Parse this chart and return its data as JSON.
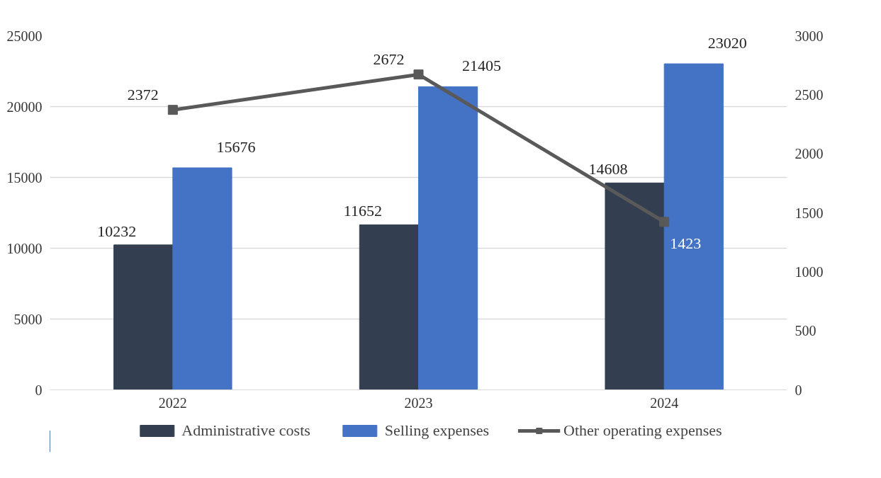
{
  "chart_data": {
    "type": "bar",
    "categories": [
      "2022",
      "2023",
      "2024"
    ],
    "series": [
      {
        "name": "Administrative costs",
        "color": "#333f50",
        "values": [
          10232,
          11652,
          14608
        ]
      },
      {
        "name": "Selling expenses",
        "color": "#4472c4",
        "values": [
          15676,
          21405,
          23020
        ]
      },
      {
        "name": "Other operating expenses",
        "type": "line",
        "axis": "y2",
        "color": "#595959",
        "values": [
          2372,
          2672,
          1423
        ]
      }
    ],
    "ylim": [
      0,
      25000
    ],
    "yticks": [
      0,
      5000,
      10000,
      15000,
      20000,
      25000
    ],
    "y2lim": [
      0,
      3000
    ],
    "y2ticks": [
      0,
      500,
      1000,
      1500,
      2000,
      2500,
      3000
    ],
    "grid": "y",
    "legend": "bottom",
    "data_labels": true,
    "marker": "square",
    "line_style": "solid"
  }
}
